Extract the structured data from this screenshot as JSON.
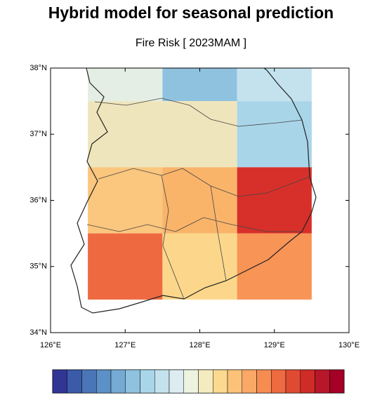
{
  "title": "Hybrid model for seasonal prediction",
  "subtitle": "Fire Risk [ 2023MAM ]",
  "map": {
    "lat_labels": [
      "38°N",
      "37°N",
      "36°N",
      "35°N",
      "34°N"
    ],
    "lon_labels": [
      "126°E",
      "127°E",
      "128°E",
      "129°E",
      "130°E"
    ],
    "cells": [
      [
        "#e4eee4",
        "#8fc2df",
        "#c3e2ee"
      ],
      [
        "#efe5bc",
        "#efe5bc",
        "#a9d5e9"
      ],
      [
        "#fbc67d",
        "#f9b46a",
        "#d7302a"
      ],
      [
        "#ee6840",
        "#fcd78b",
        "#f89456"
      ]
    ],
    "colorbar": [
      "#313695",
      "#3b5aa8",
      "#4a76b8",
      "#5b91c6",
      "#74aad3",
      "#8fc2df",
      "#a9d5e9",
      "#c3e2ee",
      "#dcecf0",
      "#eef3e0",
      "#f4ebc0",
      "#fbd98e",
      "#fcc27a",
      "#faa865",
      "#f68c52",
      "#ee6a40",
      "#e04a32",
      "#cf2b27",
      "#b8172a",
      "#a50026"
    ]
  }
}
